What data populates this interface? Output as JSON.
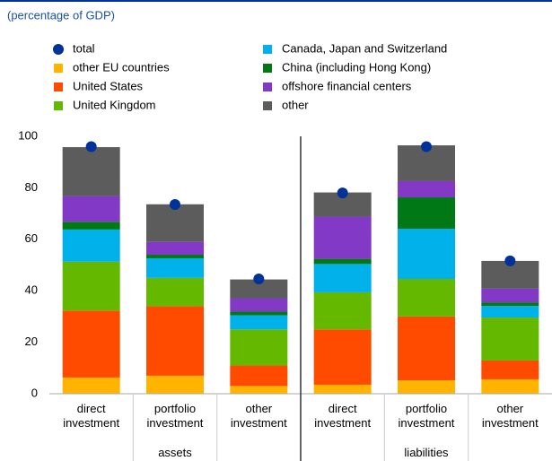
{
  "chart_data": {
    "type": "stacked-bar",
    "subtitle": "(percentage of GDP)",
    "categories": [
      "direct investment",
      "portfolio investment",
      "other investment",
      "direct investment",
      "portfolio investment",
      "other investment"
    ],
    "groups": [
      "assets",
      "liabilities"
    ],
    "ylim": [
      0,
      100
    ],
    "yticks": [
      0,
      20,
      40,
      60,
      80,
      100
    ],
    "total": {
      "name": "total",
      "color": "#003299",
      "values": [
        96,
        73.5,
        44.6,
        78,
        96,
        51.6
      ]
    },
    "series": [
      {
        "name": "other EU countries",
        "color": "#ffb400",
        "values": [
          6.3,
          7,
          3,
          3.5,
          5.2,
          5.6
        ]
      },
      {
        "name": "United States",
        "color": "#ff4b00",
        "values": [
          26,
          27,
          8,
          21.5,
          24.8,
          7.3
        ]
      },
      {
        "name": "United Kingdom",
        "color": "#65b800",
        "values": [
          19,
          11,
          14,
          14.4,
          14.6,
          16.7
        ]
      },
      {
        "name": "Canada, Japan and Switzerland",
        "color": "#00b1ea",
        "values": [
          12.5,
          7.6,
          5.5,
          11,
          19.5,
          4.5
        ]
      },
      {
        "name": "China (including Hong Kong)",
        "color": "#007816",
        "values": [
          3,
          1.4,
          1.4,
          2,
          12.2,
          1.4
        ]
      },
      {
        "name": "offshore financial centers",
        "color": "#8139c6",
        "values": [
          10,
          5,
          5.2,
          16.4,
          6.3,
          5.3
        ]
      },
      {
        "name": "other",
        "color": "#5c5c5c",
        "values": [
          19,
          14.6,
          7.3,
          9.4,
          13.9,
          10.8
        ]
      }
    ]
  }
}
